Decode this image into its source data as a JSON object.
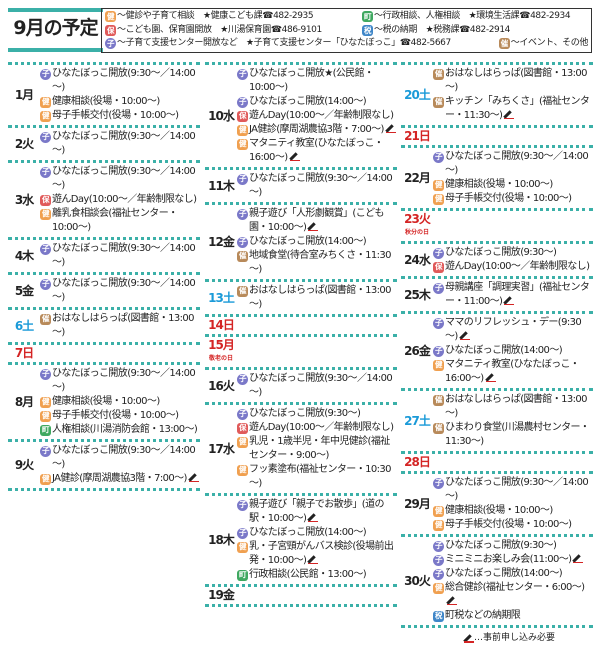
{
  "title": "9月の予定",
  "colors": {
    "accent": "#3bb0a8",
    "saturday": "#1a9ad8",
    "sunday": "#d42424",
    "ken": "#f0a050",
    "ho": "#e05a5a",
    "ko": "#7a78c8",
    "machi": "#3fa860",
    "zei": "#3f86c8",
    "sai": "#b88a5a"
  },
  "icons": {
    "ken": "健",
    "ho": "保",
    "ko": "子",
    "machi": "町",
    "zei": "税",
    "sai": "催"
  },
  "legend": [
    {
      "icon": "ken",
      "text": "～健診や子育て相談　★健康こども課☎482-2935"
    },
    {
      "icon": "machi",
      "text": "～行政相談、人権相談　★環境生活課☎482-2934"
    },
    {
      "icon": "ho",
      "text": "～こども園、保育園開放　★川湯保育園☎486-9101"
    },
    {
      "icon": "zei",
      "text": "～税の納期　★税務課☎482-2914"
    },
    {
      "icon": "ko",
      "text": "～子育て支援センター開放など　★子育て支援センター「ひなたぼっこ」☎482-5667"
    },
    {
      "icon": "sai",
      "text": "～イベント、その他"
    }
  ],
  "footer": "…事前申し込み必要",
  "columns": [
    [
      {
        "label": "1月",
        "type": "wd",
        "items": [
          {
            "icon": "ko",
            "text": "ひなたぼっこ開放(9:30～／14:00～)"
          },
          {
            "icon": "ken",
            "text": "健康相談(役場・10:00～)"
          },
          {
            "icon": "ken",
            "text": "母子手帳交付(役場・10:00～)"
          }
        ]
      },
      {
        "label": "2火",
        "type": "wd",
        "items": [
          {
            "icon": "ko",
            "text": "ひなたぼっこ開放(9:30～／14:00～)"
          }
        ]
      },
      {
        "label": "3水",
        "type": "wd",
        "items": [
          {
            "icon": "ko",
            "text": "ひなたぼっこ開放(9:30～／14:00～)"
          },
          {
            "icon": "ho",
            "text": "遊んDay(10:00～／年齢制限なし)"
          },
          {
            "icon": "ken",
            "text": "離乳食相談会(福祉センター・10:00～)"
          }
        ]
      },
      {
        "label": "4木",
        "type": "wd",
        "items": [
          {
            "icon": "ko",
            "text": "ひなたぼっこ開放(9:30～／14:00～)"
          }
        ]
      },
      {
        "label": "5金",
        "type": "wd",
        "items": [
          {
            "icon": "ko",
            "text": "ひなたぼっこ開放(9:30～／14:00～)"
          }
        ]
      },
      {
        "label": "6土",
        "type": "sat",
        "items": [
          {
            "icon": "sai",
            "text": "おはなしはらっぱ(図書館・13:00～)"
          }
        ]
      },
      {
        "label": "7日",
        "type": "sun",
        "items": []
      },
      {
        "label": "8月",
        "type": "wd",
        "items": [
          {
            "icon": "ko",
            "text": "ひなたぼっこ開放(9:30～／14:00～)"
          },
          {
            "icon": "ken",
            "text": "健康相談(役場・10:00～)"
          },
          {
            "icon": "ken",
            "text": "母子手帳交付(役場・10:00～)"
          },
          {
            "icon": "machi",
            "text": "人権相談(川湯消防会館・13:00～)"
          }
        ]
      },
      {
        "label": "9火",
        "type": "wd",
        "items": [
          {
            "icon": "ko",
            "text": "ひなたぼっこ開放(9:30～／14:00～)"
          },
          {
            "icon": "ken",
            "text": "JA健診(摩周湖農協3階・7:00～)",
            "pen": true
          }
        ]
      }
    ],
    [
      {
        "label": "10水",
        "type": "wd",
        "items": [
          {
            "icon": "ko",
            "text": "ひなたぼっこ開放★(公民館・10:00～)"
          },
          {
            "icon": "ko",
            "text": "ひなたぼっこ開放(14:00～)"
          },
          {
            "icon": "ho",
            "text": "遊んDay(10:00～／年齢制限なし)"
          },
          {
            "icon": "ken",
            "text": "JA健診(摩周湖農協3階・7:00～)",
            "pen": true
          },
          {
            "icon": "ken",
            "text": "マタニティ教室(ひなたぼっこ・16:00～)",
            "pen": true
          }
        ]
      },
      {
        "label": "11木",
        "type": "wd",
        "items": [
          {
            "icon": "ko",
            "text": "ひなたぼっこ開放(9:30～／14:00～)"
          }
        ]
      },
      {
        "label": "12金",
        "type": "wd",
        "items": [
          {
            "icon": "ko",
            "text": "親子遊び「人形劇観賞」(こども園・10:00～)",
            "pen": true
          },
          {
            "icon": "ko",
            "text": "ひなたぼっこ開放(14:00～)"
          },
          {
            "icon": "sai",
            "text": "地域食堂(待合室みちくさ・11:30～)"
          }
        ]
      },
      {
        "label": "13土",
        "type": "sat",
        "items": [
          {
            "icon": "sai",
            "text": "おはなしはらっぱ(図書館・13:00～)"
          }
        ]
      },
      {
        "label": "14日",
        "type": "sun",
        "items": []
      },
      {
        "label": "15月",
        "type": "sun",
        "holiday": "敬老の日",
        "items": []
      },
      {
        "label": "16火",
        "type": "wd",
        "items": [
          {
            "icon": "ko",
            "text": "ひなたぼっこ開放(9:30～／14:00～)"
          }
        ]
      },
      {
        "label": "17水",
        "type": "wd",
        "items": [
          {
            "icon": "ko",
            "text": "ひなたぼっこ開放(9:30～)"
          },
          {
            "icon": "ho",
            "text": "遊んDay(10:00～／年齢制限なし)"
          },
          {
            "icon": "ken",
            "text": "乳児・1歳半児・年中児健診(福祉センター・9:00～)"
          },
          {
            "icon": "ken",
            "text": "フッ素塗布(福祉センター・10:30～)"
          }
        ]
      },
      {
        "label": "18木",
        "type": "wd",
        "items": [
          {
            "icon": "ko",
            "text": "親子遊び「親子でお散歩」(道の駅・10:00～)",
            "pen": true
          },
          {
            "icon": "ko",
            "text": "ひなたぼっこ開放(14:00～)"
          },
          {
            "icon": "ken",
            "text": "乳・子宮頸がんバス検診(役場前出発・10:00～)",
            "pen": true
          },
          {
            "icon": "machi",
            "text": "行政相談(公民館・13:00～)"
          }
        ]
      },
      {
        "label": "19金",
        "type": "wd",
        "items": []
      }
    ],
    [
      {
        "label": "20土",
        "type": "sat",
        "items": [
          {
            "icon": "sai",
            "text": "おはなしはらっぱ(図書館・13:00～)"
          },
          {
            "icon": "sai",
            "text": "キッチン「みちくさ」(福祉センター・11:30～)",
            "pen": true
          }
        ]
      },
      {
        "label": "21日",
        "type": "sun",
        "items": []
      },
      {
        "label": "22月",
        "type": "wd",
        "items": [
          {
            "icon": "ko",
            "text": "ひなたぼっこ開放(9:30～／14:00～)"
          },
          {
            "icon": "ken",
            "text": "健康相談(役場・10:00～)"
          },
          {
            "icon": "ken",
            "text": "母子手帳交付(役場・10:00～)"
          }
        ]
      },
      {
        "label": "23火",
        "type": "sun",
        "holiday": "秋分の日",
        "items": []
      },
      {
        "label": "24水",
        "type": "wd",
        "items": [
          {
            "icon": "ko",
            "text": "ひなたぼっこ開放(9:30～)"
          },
          {
            "icon": "ho",
            "text": "遊んDay(10:00～／年齢制限なし)"
          }
        ]
      },
      {
        "label": "25木",
        "type": "wd",
        "items": [
          {
            "icon": "ko",
            "text": "母親講座「調理実習」(福祉センター・11:00～)",
            "pen": true
          }
        ]
      },
      {
        "label": "26金",
        "type": "wd",
        "items": [
          {
            "icon": "ko",
            "text": "ママのリフレッシュ・デー(9:30～)",
            "pen": true
          },
          {
            "icon": "ko",
            "text": "ひなたぼっこ開放(14:00～)"
          },
          {
            "icon": "ken",
            "text": "マタニティ教室(ひなたぼっこ・16:00～)",
            "pen": true
          }
        ]
      },
      {
        "label": "27土",
        "type": "sat",
        "items": [
          {
            "icon": "sai",
            "text": "おはなしはらっぱ(図書館・13:00～)"
          },
          {
            "icon": "sai",
            "text": "ひまわり食堂(川湯農村センター・11:30～)"
          }
        ]
      },
      {
        "label": "28日",
        "type": "sun",
        "items": []
      },
      {
        "label": "29月",
        "type": "wd",
        "items": [
          {
            "icon": "ko",
            "text": "ひなたぼっこ開放(9:30～／14:00～)"
          },
          {
            "icon": "ken",
            "text": "健康相談(役場・10:00～)"
          },
          {
            "icon": "ken",
            "text": "母子手帳交付(役場・10:00～)"
          }
        ]
      },
      {
        "label": "30火",
        "type": "wd",
        "items": [
          {
            "icon": "ko",
            "text": "ひなたぼっこ開放(9:30～)"
          },
          {
            "icon": "ko",
            "text": "ミニミニお楽しみ会(11:00～)",
            "pen": true
          },
          {
            "icon": "ko",
            "text": "ひなたぼっこ開放(14:00～)"
          },
          {
            "icon": "ken",
            "text": "総合健診(福祉センター・6:00～)",
            "pen": true
          },
          {
            "icon": "zei",
            "text": "町税などの納期限"
          }
        ]
      }
    ]
  ]
}
